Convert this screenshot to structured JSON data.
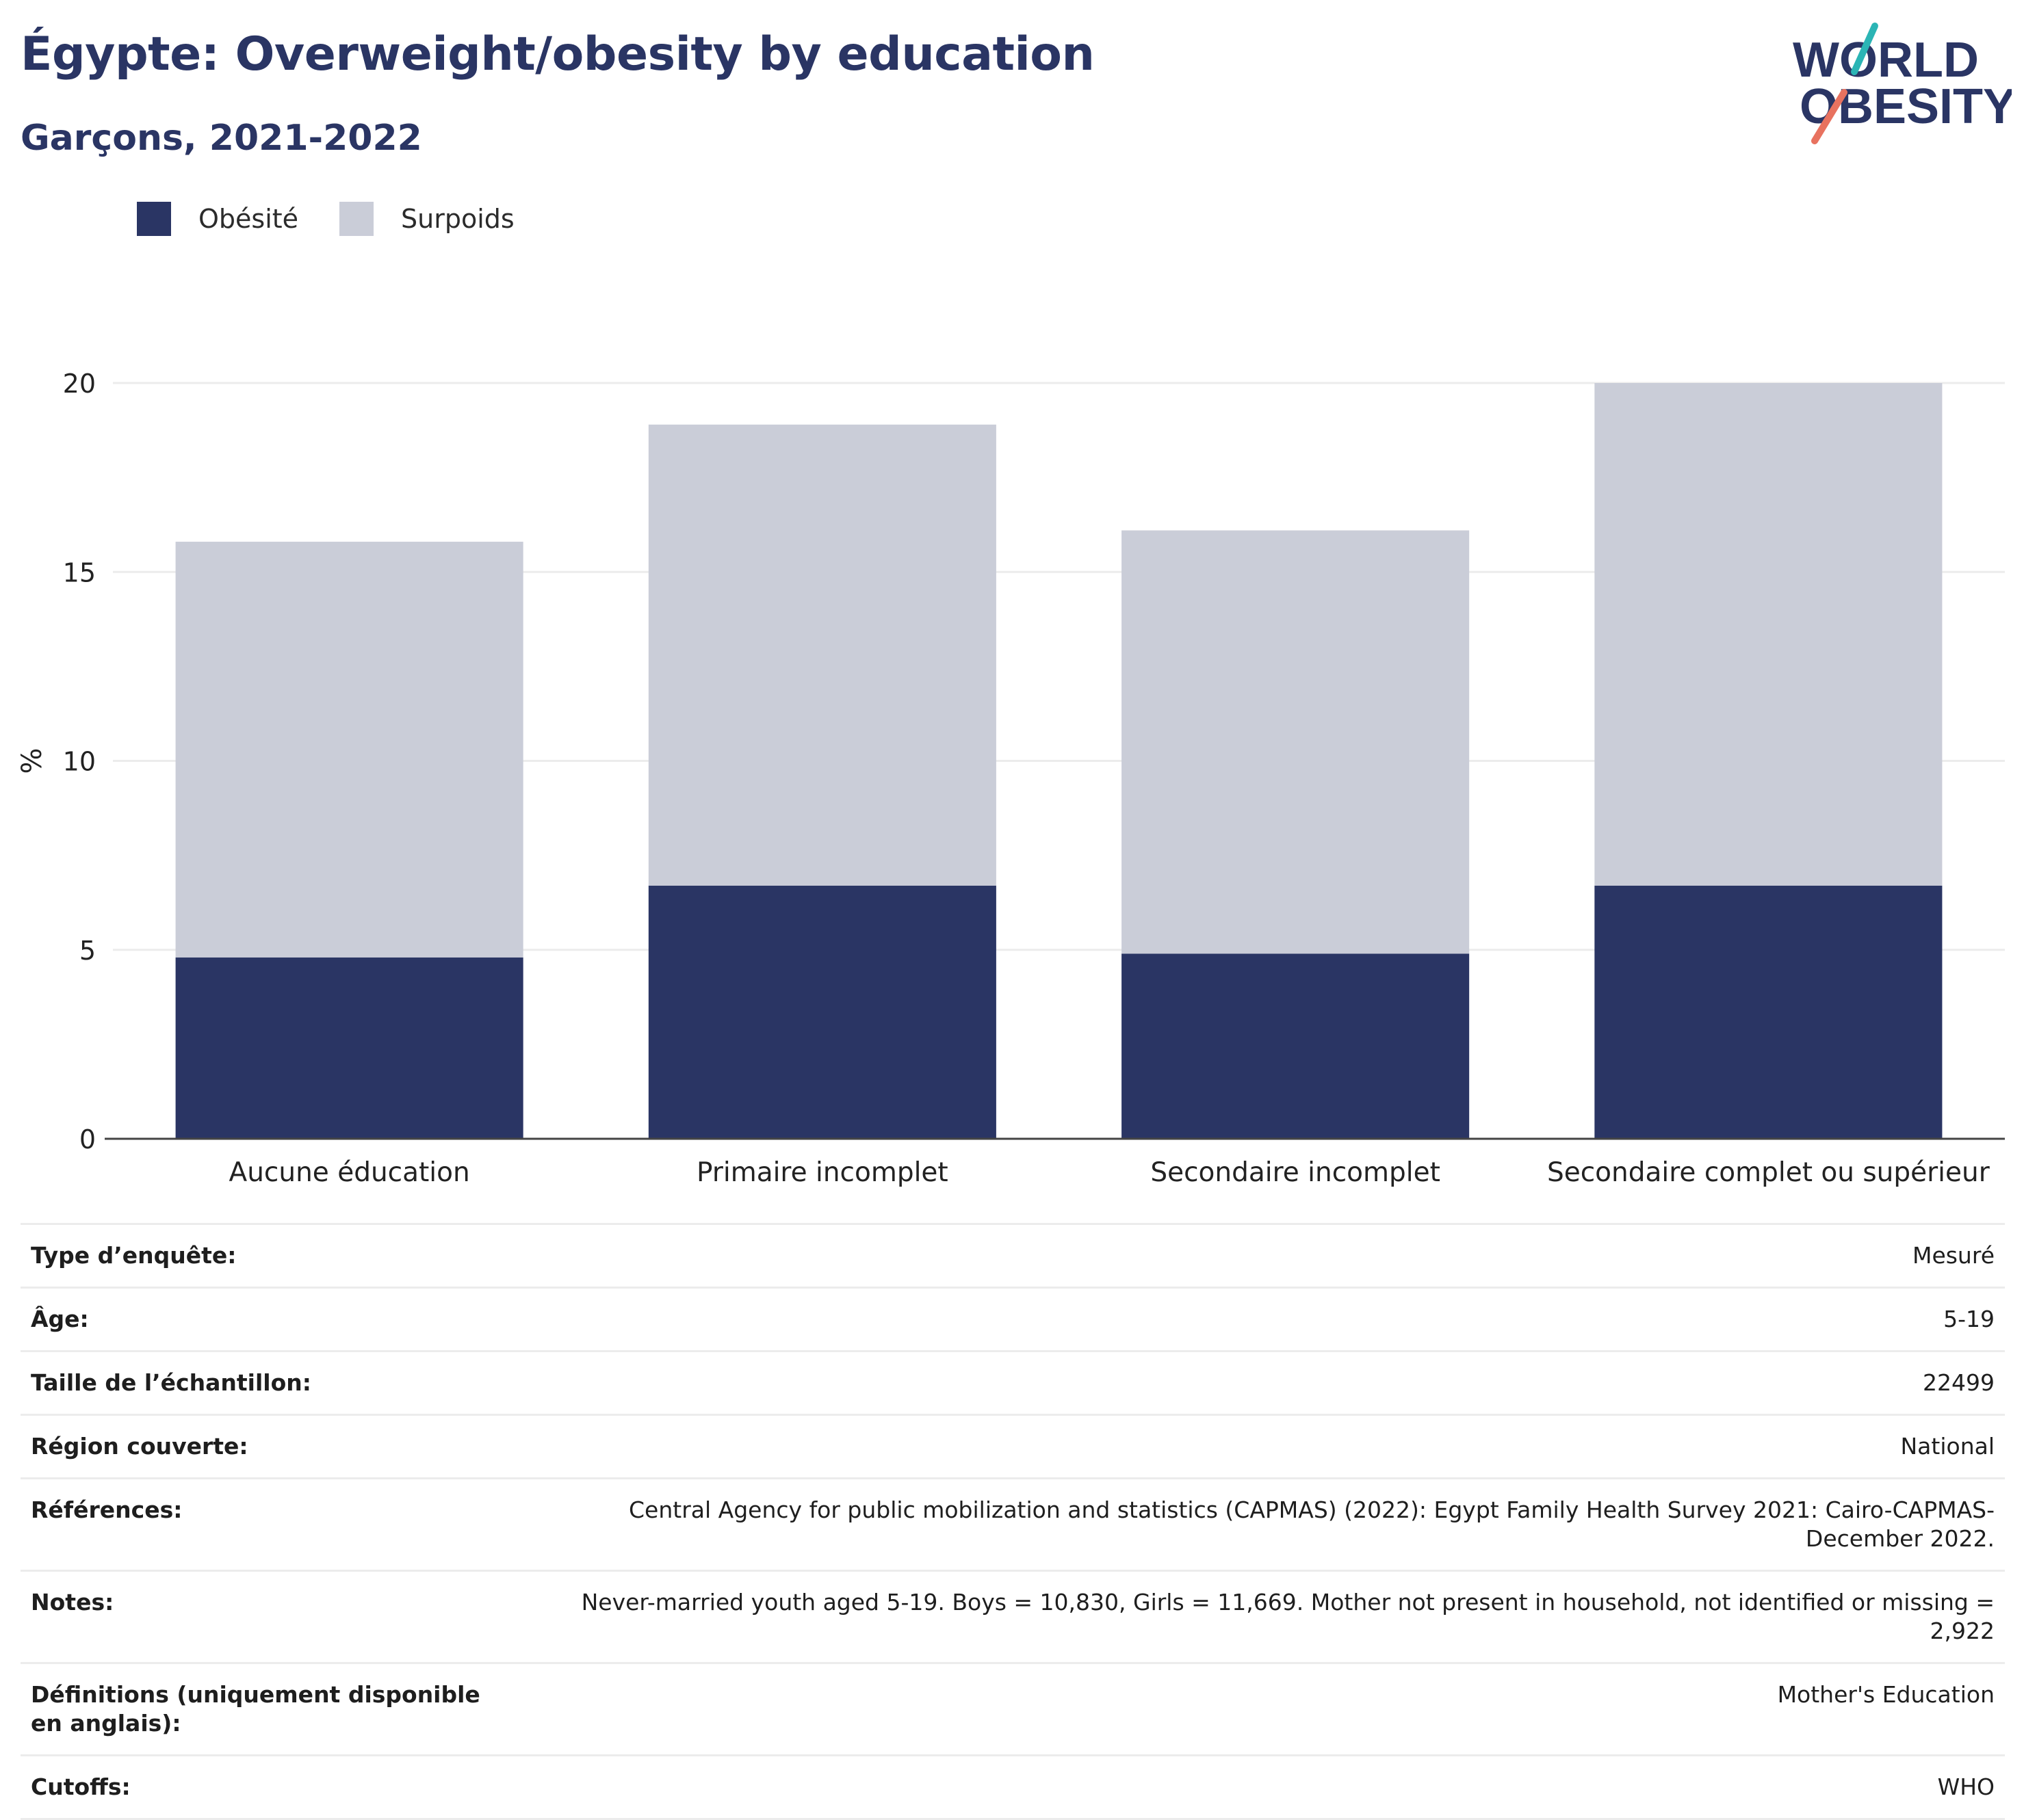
{
  "header": {
    "title": "Égypte: Overweight/obesity by education",
    "subtitle": "Garçons, 2021-2022"
  },
  "logo": {
    "line1": "WORLD",
    "line2": "OBESITY",
    "colors": {
      "navy": "#2a3564",
      "teal": "#2bb5b5",
      "coral": "#e8725f"
    }
  },
  "colors": {
    "obesity": "#2a3564",
    "overweight": "#cacdd8",
    "gridline": "#ececec",
    "axis": "#444444"
  },
  "chart_data": {
    "type": "bar",
    "stacked": true,
    "categories": [
      "Aucune éducation",
      "Primaire incomplet",
      "Secondaire incomplet",
      "Secondaire complet ou supérieur"
    ],
    "series": [
      {
        "name": "Obésité",
        "values": [
          4.8,
          6.7,
          4.9,
          6.7
        ]
      },
      {
        "name": "Surpoids",
        "values": [
          11.0,
          12.2,
          11.2,
          13.3
        ]
      }
    ],
    "ylabel": "%",
    "ylim": [
      0,
      20
    ],
    "yticks": [
      "0",
      "5",
      "10",
      "15",
      "20"
    ],
    "grid": true,
    "legend_position": "top-left"
  },
  "table": [
    {
      "label": "Type d’enquête:",
      "value": "Mesuré"
    },
    {
      "label": "Âge:",
      "value": "5-19"
    },
    {
      "label": "Taille de l’échantillon:",
      "value": "22499"
    },
    {
      "label": "Région couverte:",
      "value": "National"
    },
    {
      "label": "Références:",
      "value": "Central Agency for public mobilization and statistics (CAPMAS) (2022): Egypt Family Health Survey 2021: Cairo-CAPMAS-December 2022."
    },
    {
      "label": "Notes:",
      "value": "Never-married youth aged 5-19. Boys = 10,830, Girls = 11,669. Mother not present in household, not identified or missing = 2,922"
    },
    {
      "label": "Définitions (uniquement disponible en anglais):",
      "value": "Mother's Education"
    },
    {
      "label": "Cutoffs:",
      "value": "WHO"
    }
  ]
}
